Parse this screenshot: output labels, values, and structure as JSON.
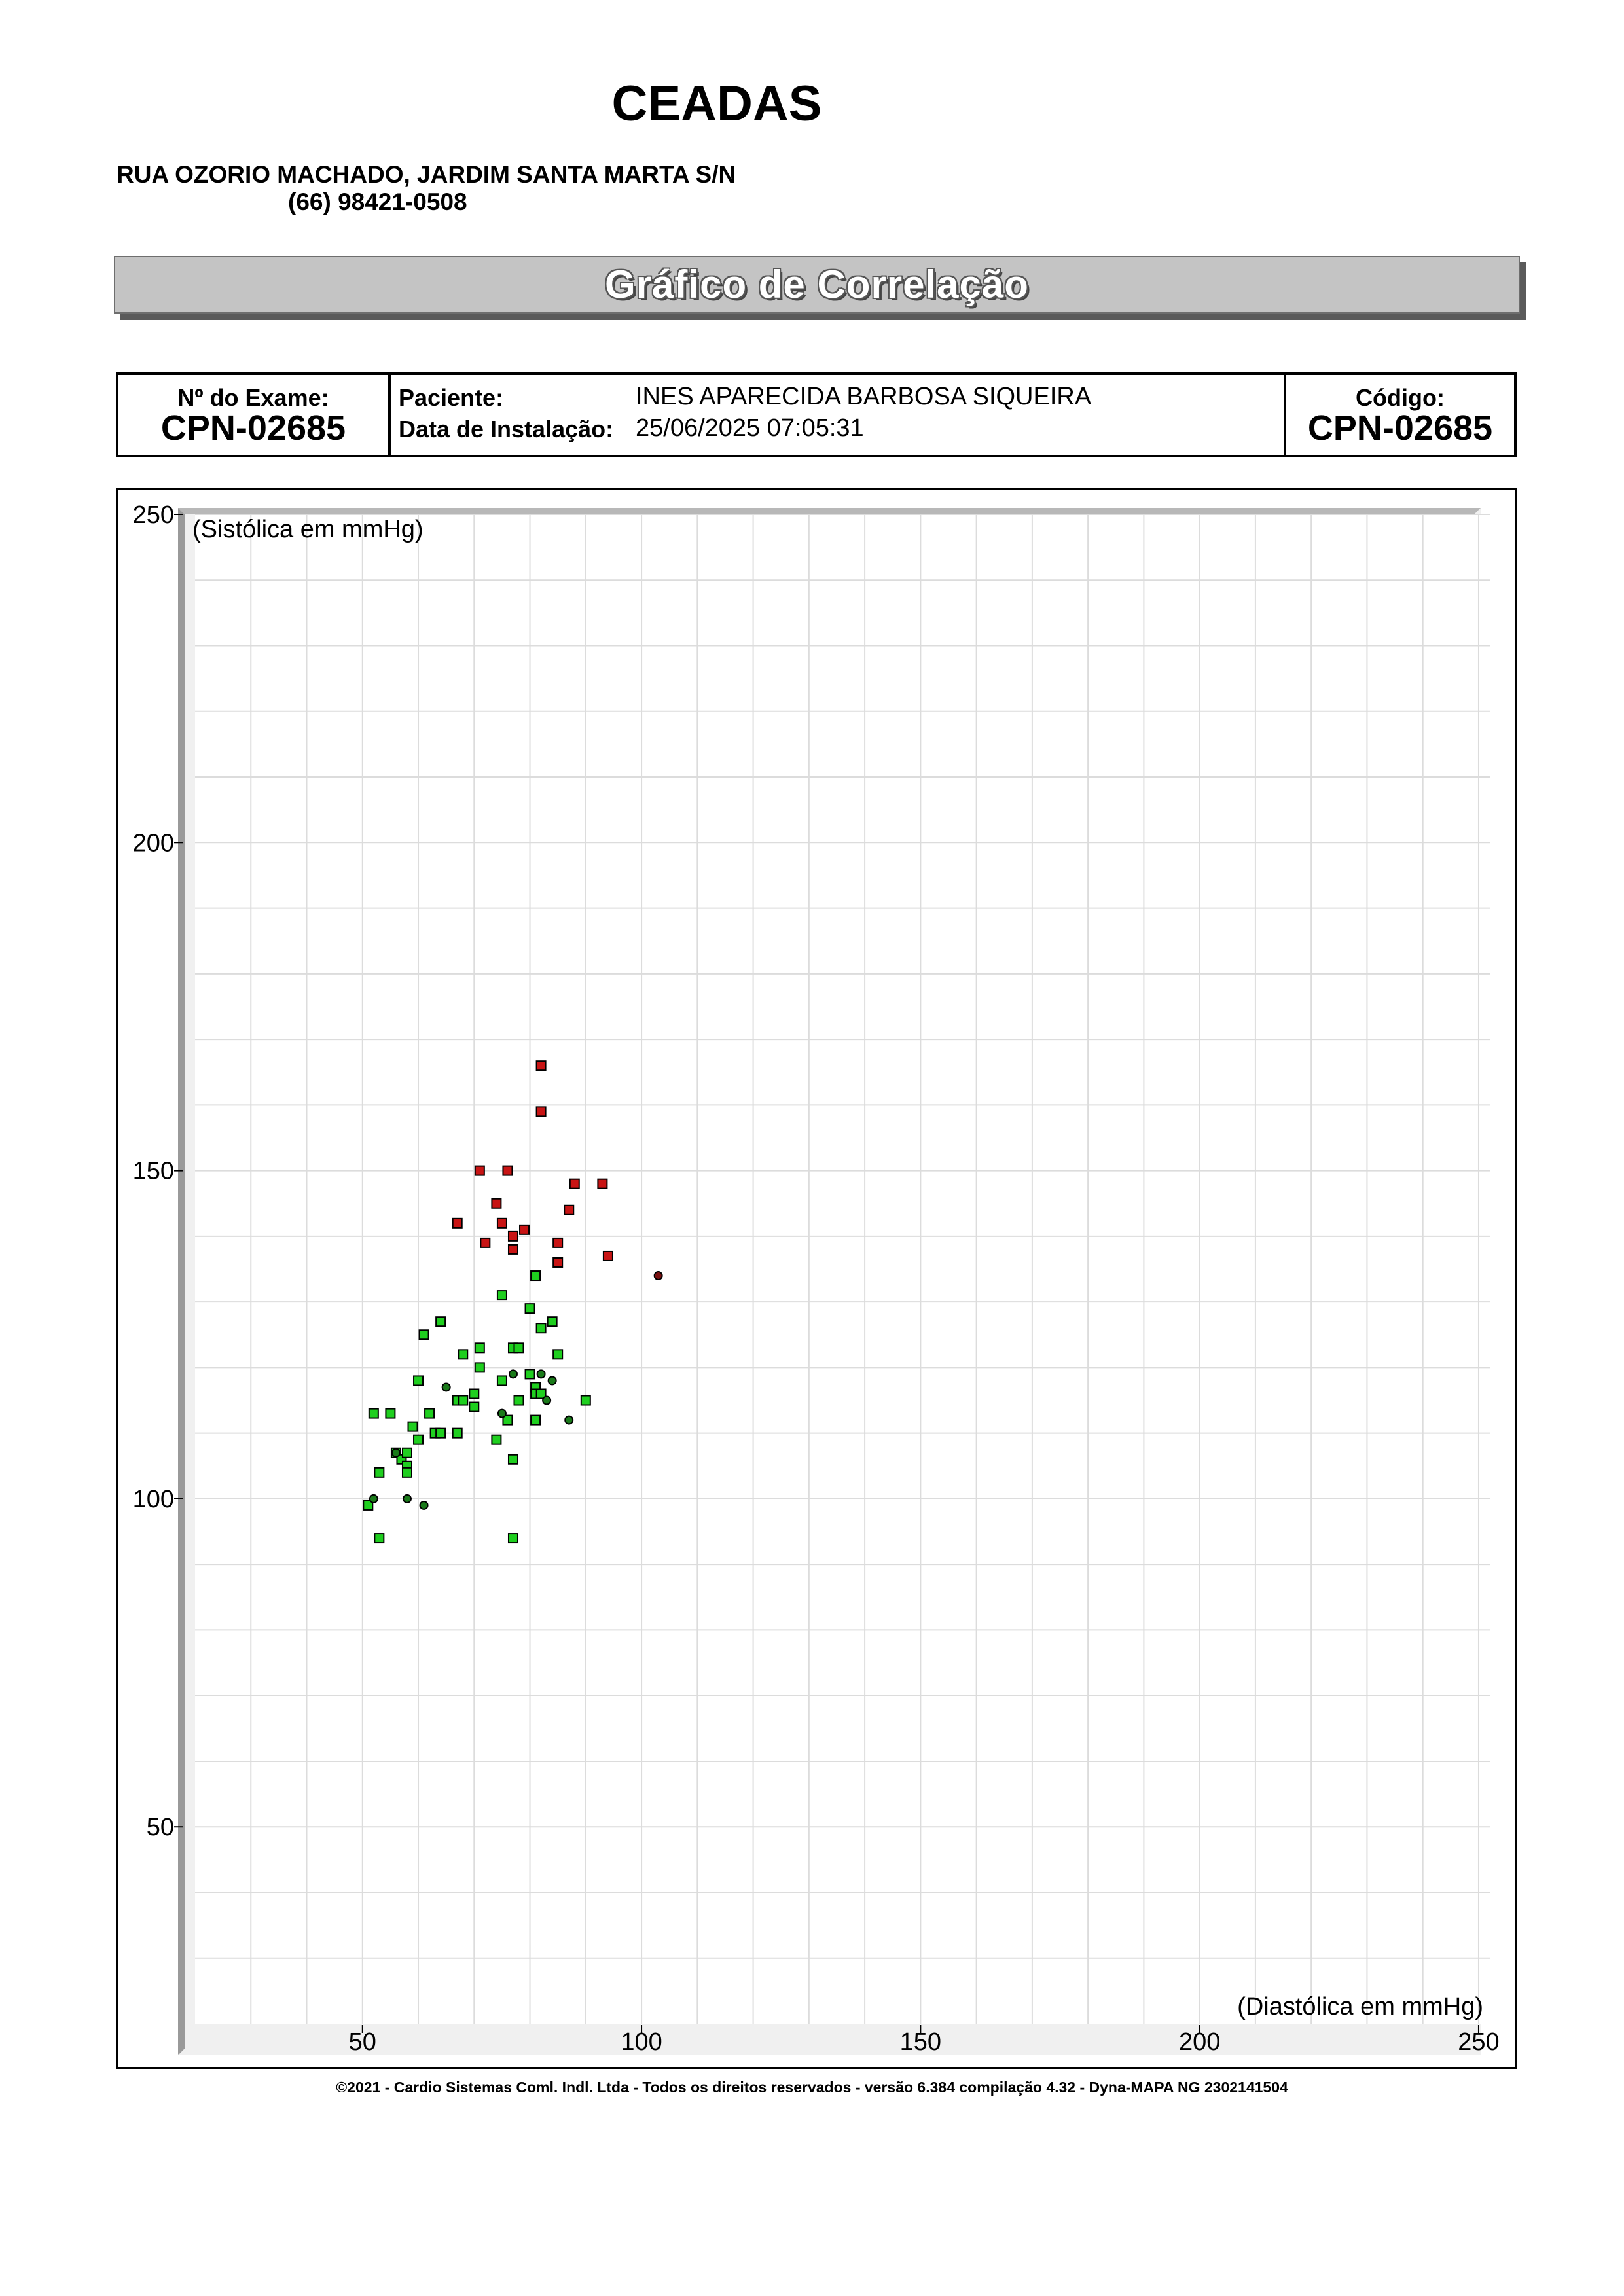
{
  "header": {
    "clinic_name": "CEADAS",
    "address": "RUA OZORIO MACHADO, JARDIM SANTA MARTA S/N",
    "phone": "(66) 98421-0508"
  },
  "title": "Gráfico de Correlação",
  "exam": {
    "exam_label": "Nº do Exame:",
    "exam_number": "CPN-02685",
    "patient_label": "Paciente:",
    "patient_name": "INES APARECIDA BARBOSA SIQUEIRA",
    "install_label": "Data de Instalação:",
    "install_date": "25/06/2025 07:05:31",
    "code_label": "Código:",
    "code_value": "CPN-02685"
  },
  "chart_data": {
    "type": "scatter",
    "xlabel": "(Diastólica em mmHg)",
    "ylabel": "(Sistólica em mmHg)",
    "xlim": [
      20,
      252
    ],
    "ylim": [
      20,
      250
    ],
    "x_ticks": [
      50,
      100,
      150,
      200,
      250
    ],
    "y_ticks": [
      50,
      100,
      150,
      200,
      250
    ],
    "grid": true,
    "colors": {
      "green": "#1fcf1f",
      "dark_green": "#1a7a1a",
      "red": "#c81414",
      "dark_red": "#7a1010",
      "grid": "#dcdcdc"
    },
    "series": [
      {
        "marker": "square",
        "color": "green",
        "points": [
          [
            51,
            99
          ],
          [
            52,
            113
          ],
          [
            53,
            104
          ],
          [
            53,
            94
          ],
          [
            55,
            113
          ],
          [
            56,
            107
          ],
          [
            57,
            106
          ],
          [
            58,
            107
          ],
          [
            58,
            105
          ],
          [
            58,
            104
          ],
          [
            59,
            111
          ],
          [
            60,
            109
          ],
          [
            60,
            118
          ],
          [
            61,
            125
          ],
          [
            62,
            113
          ],
          [
            63,
            110
          ],
          [
            64,
            110
          ],
          [
            64,
            127
          ],
          [
            67,
            110
          ],
          [
            67,
            115
          ],
          [
            68,
            122
          ],
          [
            68,
            115
          ],
          [
            70,
            116
          ],
          [
            70,
            114
          ],
          [
            71,
            120
          ],
          [
            71,
            123
          ],
          [
            74,
            109
          ],
          [
            75,
            118
          ],
          [
            75,
            131
          ],
          [
            76,
            112
          ],
          [
            77,
            123
          ],
          [
            77,
            106
          ],
          [
            77,
            94
          ],
          [
            78,
            123
          ],
          [
            78,
            115
          ],
          [
            80,
            129
          ],
          [
            80,
            119
          ],
          [
            81,
            134
          ],
          [
            81,
            117
          ],
          [
            81,
            116
          ],
          [
            81,
            112
          ],
          [
            82,
            126
          ],
          [
            82,
            116
          ],
          [
            84,
            127
          ],
          [
            85,
            122
          ],
          [
            90,
            115
          ]
        ]
      },
      {
        "marker": "circle",
        "color": "dark_green",
        "points": [
          [
            52,
            100
          ],
          [
            56,
            107
          ],
          [
            58,
            100
          ],
          [
            61,
            99
          ],
          [
            65,
            117
          ],
          [
            75,
            113
          ],
          [
            77,
            119
          ],
          [
            82,
            119
          ],
          [
            83,
            115
          ],
          [
            84,
            118
          ],
          [
            87,
            112
          ]
        ]
      },
      {
        "marker": "square",
        "color": "red",
        "points": [
          [
            67,
            142
          ],
          [
            71,
            150
          ],
          [
            72,
            139
          ],
          [
            74,
            145
          ],
          [
            75,
            142
          ],
          [
            76,
            150
          ],
          [
            77,
            140
          ],
          [
            77,
            138
          ],
          [
            79,
            141
          ],
          [
            82,
            166
          ],
          [
            82,
            159
          ],
          [
            85,
            139
          ],
          [
            85,
            136
          ],
          [
            87,
            144
          ],
          [
            88,
            148
          ],
          [
            93,
            148
          ],
          [
            94,
            137
          ]
        ]
      },
      {
        "marker": "circle",
        "color": "dark_red",
        "points": [
          [
            103,
            134
          ]
        ]
      }
    ]
  },
  "footer": "©2021 - Cardio Sistemas Coml. Indl. Ltda - Todos os direitos reservados - versão 6.384 compilação 4.32 - Dyna-MAPA NG 2302141504"
}
